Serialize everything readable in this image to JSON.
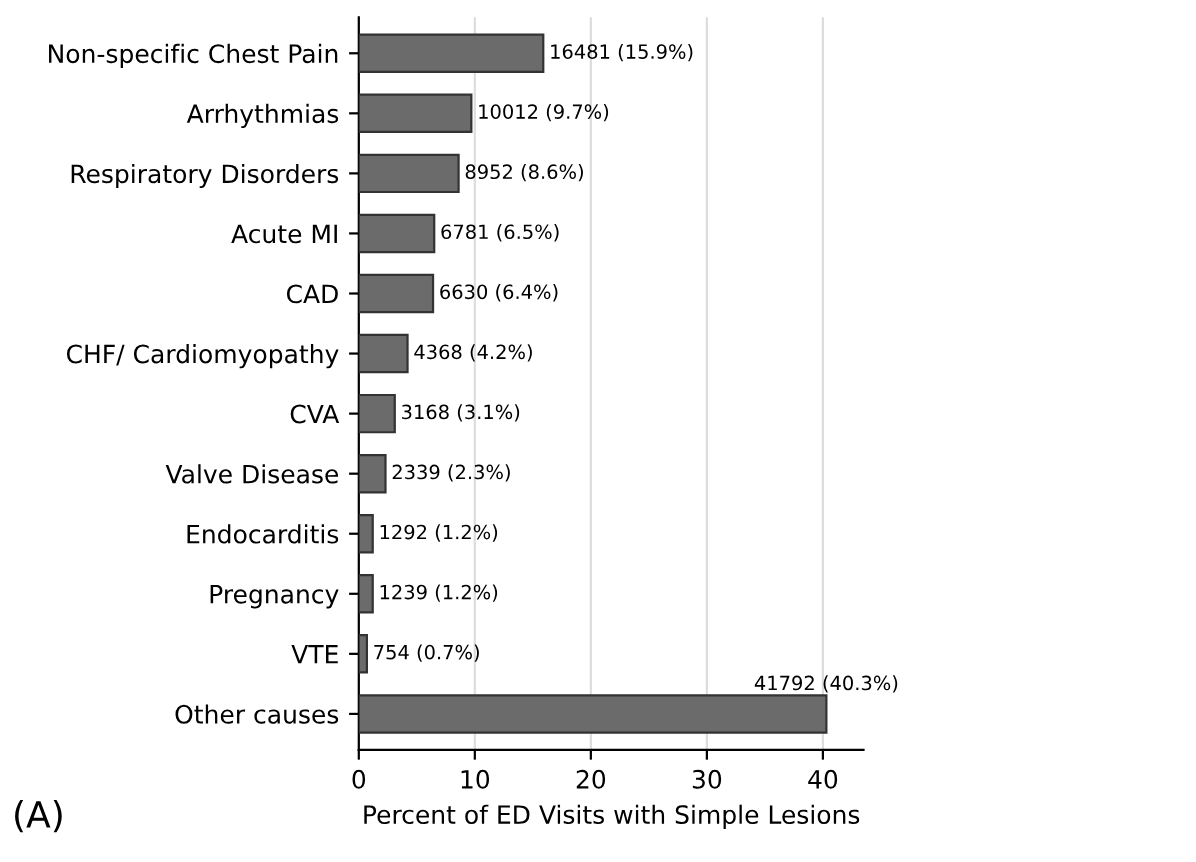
{
  "chart_data": {
    "type": "bar",
    "orientation": "horizontal",
    "categories": [
      "Non-specific Chest Pain",
      "Arrhythmias",
      "Respiratory Disorders",
      "Acute MI",
      "CAD",
      "CHF/ Cardiomyopathy",
      "CVA",
      "Valve Disease",
      "Endocarditis",
      "Pregnancy",
      "VTE",
      "Other causes"
    ],
    "values": [
      15.9,
      9.7,
      8.6,
      6.5,
      6.4,
      4.2,
      3.1,
      2.3,
      1.2,
      1.2,
      0.7,
      40.3
    ],
    "value_labels": [
      "16481 (15.9%)",
      "10012 (9.7%)",
      "8952 (8.6%)",
      "6781 (6.5%)",
      "6630 (6.4%)",
      "4368 (4.2%)",
      "3168 (3.1%)",
      "2339 (2.3%)",
      "1292 (1.2%)",
      "1239 (1.2%)",
      "754 (0.7%)",
      "41792 (40.3%)"
    ],
    "color": "#6b6b6b",
    "xlabel": "Percent of ED Visits with Simple Lesions",
    "xlim": [
      0,
      43.5
    ],
    "xticks": [
      0,
      10,
      20,
      30,
      40
    ],
    "grid": "x",
    "annotations": [
      "(A)"
    ]
  }
}
